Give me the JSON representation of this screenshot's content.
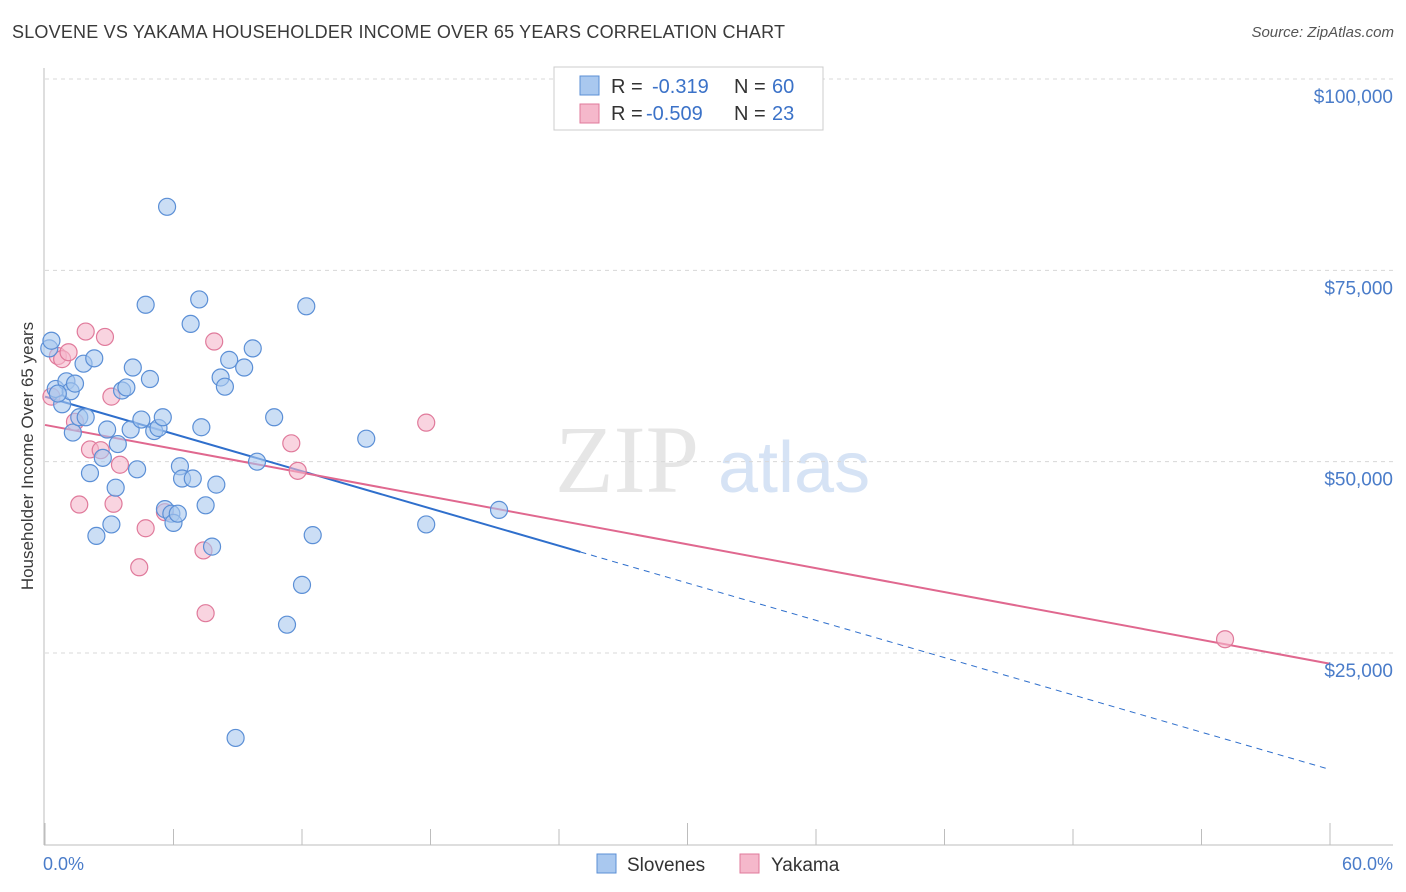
{
  "title": "SLOVENE VS YAKAMA HOUSEHOLDER INCOME OVER 65 YEARS CORRELATION CHART",
  "source": "Source: ZipAtlas.com",
  "watermark": {
    "zip": "ZIP",
    "atlas": "atlas"
  },
  "colors": {
    "slovenes_fill": "#a9c8ef",
    "slovenes_stroke": "#5b8fd6",
    "slovenes_line": "#2f6fcc",
    "yakama_fill": "#f5b8cb",
    "yakama_stroke": "#e07a9b",
    "yakama_line": "#e0688f",
    "axis_text": "#4a7cc9",
    "grid": "#d8d8d8"
  },
  "legend": {
    "rows": [
      {
        "r_label": "R =",
        "r_value": "-0.319",
        "n_label": "N =",
        "n_value": "60"
      },
      {
        "r_label": "R =",
        "r_value": "-0.509",
        "n_label": "N =",
        "n_value": "23"
      }
    ]
  },
  "bottom_legend": [
    "Slovenes",
    "Yakama"
  ],
  "chart_data": {
    "type": "scatter",
    "title": "SLOVENE VS YAKAMA HOUSEHOLDER INCOME OVER 65 YEARS CORRELATION CHART",
    "xlabel": "",
    "ylabel": "Householder Income Over 65 years",
    "xlim": [
      0,
      60
    ],
    "ylim": [
      0,
      105000
    ],
    "x_tick_labels": [
      "0.0%",
      "60.0%"
    ],
    "y_ticks": [
      25000,
      50000,
      75000,
      100000
    ],
    "y_tick_labels": [
      "$25,000",
      "$50,000",
      "$75,000",
      "$100,000"
    ],
    "grid": "horizontal dashed",
    "legend_position": "top-center",
    "series": [
      {
        "name": "Slovenes",
        "r": -0.319,
        "n": 60,
        "trend": {
          "x0": 0,
          "y0": 58500,
          "x1": 25,
          "y1": 38200,
          "x_dashed_end": 60
        },
        "points": [
          [
            0.2,
            64800
          ],
          [
            0.3,
            65800
          ],
          [
            0.5,
            59500
          ],
          [
            0.8,
            57500
          ],
          [
            1.0,
            60500
          ],
          [
            1.2,
            59200
          ],
          [
            1.3,
            53800
          ],
          [
            1.4,
            60200
          ],
          [
            1.6,
            55800
          ],
          [
            1.8,
            62800
          ],
          [
            1.9,
            55800
          ],
          [
            2.1,
            48500
          ],
          [
            2.4,
            40300
          ],
          [
            2.7,
            50500
          ],
          [
            2.9,
            54200
          ],
          [
            3.1,
            41800
          ],
          [
            3.3,
            46600
          ],
          [
            3.4,
            52300
          ],
          [
            3.6,
            59300
          ],
          [
            3.8,
            59700
          ],
          [
            4.0,
            54200
          ],
          [
            4.1,
            62300
          ],
          [
            4.3,
            49000
          ],
          [
            4.5,
            55500
          ],
          [
            4.7,
            70500
          ],
          [
            4.9,
            60800
          ],
          [
            5.1,
            54000
          ],
          [
            5.3,
            54400
          ],
          [
            5.5,
            55800
          ],
          [
            5.6,
            43800
          ],
          [
            5.7,
            83300
          ],
          [
            5.9,
            43200
          ],
          [
            6.0,
            42000
          ],
          [
            6.2,
            43200
          ],
          [
            6.3,
            49400
          ],
          [
            6.4,
            47800
          ],
          [
            6.8,
            68000
          ],
          [
            6.9,
            47800
          ],
          [
            7.2,
            71200
          ],
          [
            7.3,
            54500
          ],
          [
            7.5,
            44300
          ],
          [
            7.8,
            38900
          ],
          [
            8.0,
            47000
          ],
          [
            8.2,
            61000
          ],
          [
            8.4,
            59800
          ],
          [
            8.6,
            63300
          ],
          [
            8.9,
            13900
          ],
          [
            9.3,
            62300
          ],
          [
            9.7,
            64800
          ],
          [
            9.9,
            50000
          ],
          [
            10.7,
            55800
          ],
          [
            11.3,
            28700
          ],
          [
            12.0,
            33900
          ],
          [
            12.2,
            70300
          ],
          [
            12.5,
            40400
          ],
          [
            15.0,
            53000
          ],
          [
            17.8,
            41800
          ],
          [
            21.2,
            43700
          ],
          [
            2.3,
            63500
          ],
          [
            0.6,
            58900
          ]
        ]
      },
      {
        "name": "Yakama",
        "r": -0.509,
        "n": 23,
        "trend": {
          "x0": 0,
          "y0": 54800,
          "x1": 60,
          "y1": 23600
        },
        "points": [
          [
            0.3,
            58500
          ],
          [
            0.6,
            63800
          ],
          [
            0.8,
            63400
          ],
          [
            1.1,
            64300
          ],
          [
            1.4,
            55200
          ],
          [
            1.6,
            44400
          ],
          [
            1.9,
            67000
          ],
          [
            2.1,
            51600
          ],
          [
            2.6,
            51500
          ],
          [
            2.8,
            66300
          ],
          [
            3.1,
            58500
          ],
          [
            3.2,
            44500
          ],
          [
            3.5,
            49600
          ],
          [
            4.4,
            36200
          ],
          [
            4.7,
            41300
          ],
          [
            5.6,
            43400
          ],
          [
            7.4,
            38400
          ],
          [
            7.5,
            30200
          ],
          [
            7.9,
            65700
          ],
          [
            11.5,
            52400
          ],
          [
            11.8,
            48800
          ],
          [
            17.8,
            55100
          ],
          [
            55.1,
            26800
          ]
        ]
      }
    ]
  }
}
